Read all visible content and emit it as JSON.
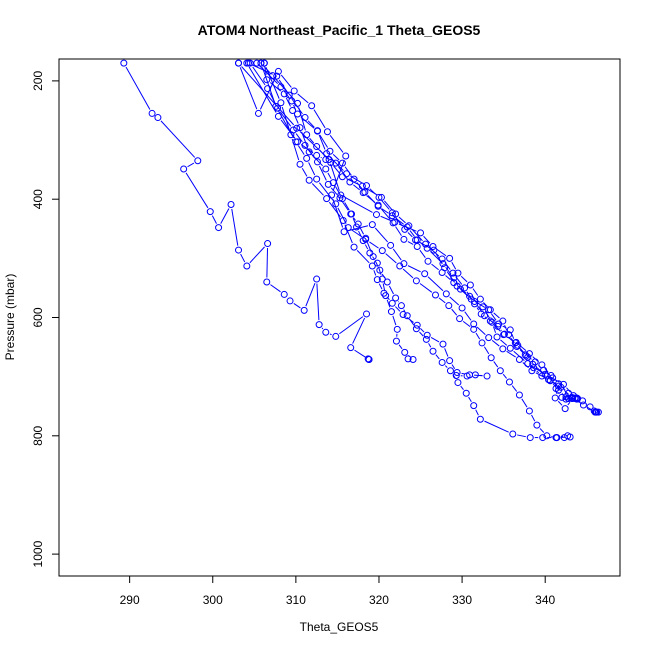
{
  "chart_data": {
    "type": "line",
    "title": "ATOM4 Northeast_Pacific_1 Theta_GEOS5",
    "xlabel": "Theta_GEOS5",
    "ylabel": "Pressure (mbar)",
    "xlim": [
      281.5,
      349
    ],
    "ylim": [
      1037,
      163
    ],
    "y_reversed": true,
    "xticks": [
      290,
      300,
      310,
      320,
      330,
      340
    ],
    "yticks": [
      200,
      400,
      600,
      800,
      1000
    ],
    "grid": false,
    "legend": "none",
    "color": "#0000ff",
    "marker": "open-circle",
    "series": [
      {
        "points": [
          [
            289.3,
            170
          ],
          [
            292.7,
            255
          ],
          [
            293.4,
            262
          ],
          [
            298.2,
            335
          ],
          [
            296.5,
            349
          ],
          [
            299.7,
            421
          ],
          [
            300.7,
            448
          ],
          [
            302.2,
            409
          ],
          [
            303.1,
            486
          ],
          [
            304.1,
            513
          ],
          [
            306.6,
            475
          ],
          [
            306.5,
            540
          ],
          [
            308.6,
            561
          ],
          [
            309.3,
            572
          ],
          [
            311.0,
            588
          ],
          [
            312.5,
            535
          ],
          [
            312.8,
            612
          ],
          [
            313.6,
            625
          ],
          [
            314.8,
            632
          ],
          [
            318.5,
            594
          ],
          [
            316.6,
            651
          ],
          [
            318.8,
            671
          ],
          [
            318.8,
            671
          ],
          [
            318.7,
            670
          ]
        ]
      },
      {
        "points": [
          [
            303.1,
            170
          ],
          [
            305.5,
            255
          ],
          [
            307.9,
            184
          ],
          [
            309.8,
            217
          ],
          [
            311.9,
            242
          ],
          [
            313.8,
            286
          ],
          [
            316.0,
            327
          ],
          [
            314.3,
            393
          ],
          [
            315.8,
            455
          ],
          [
            319.2,
            443
          ],
          [
            321.4,
            478
          ],
          [
            323.0,
            509
          ],
          [
            325.5,
            526
          ],
          [
            328.1,
            560
          ],
          [
            330.0,
            584
          ],
          [
            331.4,
            611
          ],
          [
            333.2,
            634
          ],
          [
            334.9,
            653
          ],
          [
            336.9,
            671
          ],
          [
            338.4,
            690
          ],
          [
            340.4,
            705
          ],
          [
            341.9,
            718
          ],
          [
            343.2,
            735
          ],
          [
            344.6,
            748
          ],
          [
            346.1,
            760
          ],
          [
            346.2,
            760
          ],
          [
            345.9,
            758
          ]
        ]
      },
      {
        "points": [
          [
            303.1,
            170
          ],
          [
            310.1,
            280
          ],
          [
            314.0,
            333
          ],
          [
            315.4,
            393
          ],
          [
            319.7,
            426
          ],
          [
            321.9,
            439
          ],
          [
            325.0,
            457
          ],
          [
            326.5,
            480
          ],
          [
            328.5,
            500
          ],
          [
            329.5,
            525
          ],
          [
            331.0,
            545
          ],
          [
            332.2,
            569
          ],
          [
            333.4,
            587
          ],
          [
            334.9,
            606
          ],
          [
            335.6,
            629
          ],
          [
            336.6,
            649
          ],
          [
            337.7,
            665
          ],
          [
            338.6,
            685
          ],
          [
            339.6,
            699
          ],
          [
            340.6,
            706
          ],
          [
            341.6,
            723
          ],
          [
            342.5,
            734
          ],
          [
            343.2,
            737
          ],
          [
            343.8,
            736
          ],
          [
            343.6,
            736
          ]
        ]
      },
      {
        "points": [
          [
            304.3,
            170
          ],
          [
            307.7,
            192
          ],
          [
            309.2,
            224
          ],
          [
            311.1,
            262
          ],
          [
            312.6,
            284
          ],
          [
            313.7,
            323
          ],
          [
            316.1,
            357
          ],
          [
            318.5,
            377
          ],
          [
            320.0,
            397
          ],
          [
            321.6,
            423
          ],
          [
            323.1,
            451
          ],
          [
            324.4,
            469
          ],
          [
            326.6,
            486
          ],
          [
            327.9,
            516
          ],
          [
            329.4,
            547
          ],
          [
            331.1,
            569
          ],
          [
            333.2,
            587
          ],
          [
            334.4,
            611
          ],
          [
            335.8,
            621
          ],
          [
            336.4,
            643
          ],
          [
            337.9,
            667
          ],
          [
            338.5,
            679
          ],
          [
            340.2,
            699
          ],
          [
            340.6,
            707
          ],
          [
            341.6,
            716
          ],
          [
            341.2,
            736
          ],
          [
            342.4,
            754
          ],
          [
            343.3,
            737
          ],
          [
            342.8,
            737
          ]
        ]
      },
      {
        "points": [
          [
            305.3,
            170
          ],
          [
            308.2,
            210
          ],
          [
            309.5,
            234
          ],
          [
            310.2,
            256
          ],
          [
            312.6,
            285
          ],
          [
            314.1,
            319
          ],
          [
            315.6,
            339
          ],
          [
            317.0,
            366
          ],
          [
            318.3,
            388
          ],
          [
            319.9,
            412
          ],
          [
            321.6,
            428
          ],
          [
            323.4,
            447
          ],
          [
            324.6,
            469
          ],
          [
            325.8,
            483
          ],
          [
            327.7,
            509
          ],
          [
            329.0,
            533
          ],
          [
            329.8,
            552
          ],
          [
            331.5,
            573
          ],
          [
            332.7,
            597
          ],
          [
            334.3,
            615
          ],
          [
            335.1,
            628
          ],
          [
            336.7,
            647
          ],
          [
            337.6,
            663
          ],
          [
            338.8,
            675
          ],
          [
            339.8,
            689
          ],
          [
            340.9,
            702
          ],
          [
            341.3,
            720
          ],
          [
            342.0,
            735
          ],
          [
            343.8,
            738
          ],
          [
            342.5,
            738
          ]
        ]
      },
      {
        "points": [
          [
            306.2,
            170
          ],
          [
            308.2,
            237
          ],
          [
            309.4,
            291
          ],
          [
            310.5,
            341
          ],
          [
            311.6,
            368
          ],
          [
            313.7,
            399
          ],
          [
            315.7,
            436
          ],
          [
            317.0,
            481
          ],
          [
            319.2,
            513
          ],
          [
            319.8,
            536
          ],
          [
            320.6,
            559
          ],
          [
            321.6,
            576
          ],
          [
            322.9,
            595
          ],
          [
            324.6,
            613
          ],
          [
            325.8,
            630
          ],
          [
            327.7,
            645
          ],
          [
            328.5,
            673
          ],
          [
            329.4,
            693
          ],
          [
            330.9,
            697
          ],
          [
            333.0,
            699
          ],
          [
            331.6,
            697
          ],
          [
            330.6,
            699
          ],
          [
            329.3,
            698
          ]
        ]
      },
      {
        "points": [
          [
            306.2,
            170
          ],
          [
            306.5,
            198
          ],
          [
            308.6,
            222
          ],
          [
            309.6,
            250
          ],
          [
            310.5,
            279
          ],
          [
            311.6,
            320
          ],
          [
            313.6,
            349
          ],
          [
            314.5,
            372
          ],
          [
            315.6,
            399
          ],
          [
            316.7,
            425
          ],
          [
            317.3,
            447
          ],
          [
            318.1,
            470
          ],
          [
            318.9,
            491
          ],
          [
            319.8,
            508
          ],
          [
            320.4,
            535
          ],
          [
            320.8,
            563
          ],
          [
            321.5,
            590
          ],
          [
            322.2,
            620
          ],
          [
            322.1,
            640
          ],
          [
            323.1,
            659
          ],
          [
            324.1,
            671
          ],
          [
            323.5,
            670
          ]
        ]
      },
      {
        "points": [
          [
            305.8,
            170
          ],
          [
            307.6,
            243
          ],
          [
            310.0,
            303
          ],
          [
            311.3,
            331
          ],
          [
            312.5,
            366
          ],
          [
            314.8,
            408
          ],
          [
            316.3,
            448
          ],
          [
            318.4,
            468
          ],
          [
            320.4,
            487
          ],
          [
            322.5,
            513
          ],
          [
            324.5,
            538
          ],
          [
            326.8,
            562
          ],
          [
            328.4,
            580
          ],
          [
            329.7,
            602
          ],
          [
            331.4,
            620
          ],
          [
            332.4,
            643
          ],
          [
            333.5,
            668
          ],
          [
            334.6,
            690
          ],
          [
            335.7,
            709
          ],
          [
            336.9,
            731
          ],
          [
            338.1,
            758
          ],
          [
            339.0,
            782
          ],
          [
            340.2,
            800
          ],
          [
            341.4,
            803
          ],
          [
            342.7,
            800
          ],
          [
            343.0,
            802
          ],
          [
            341.4,
            803
          ]
        ]
      },
      {
        "points": [
          [
            304.5,
            170
          ],
          [
            306.6,
            213
          ],
          [
            307.8,
            246
          ],
          [
            309.7,
            283
          ],
          [
            311.1,
            309
          ],
          [
            312.6,
            337
          ],
          [
            313.9,
            375
          ],
          [
            315.3,
            398
          ],
          [
            316.6,
            425
          ],
          [
            317.5,
            442
          ],
          [
            318.4,
            466
          ],
          [
            319.3,
            497
          ],
          [
            320.1,
            520
          ],
          [
            321.0,
            540
          ],
          [
            322.0,
            567
          ],
          [
            322.7,
            580
          ],
          [
            323.4,
            597
          ],
          [
            324.5,
            619
          ],
          [
            325.7,
            637
          ],
          [
            326.5,
            657
          ],
          [
            327.6,
            676
          ],
          [
            328.6,
            690
          ],
          [
            329.5,
            710
          ],
          [
            330.5,
            728
          ],
          [
            331.4,
            749
          ],
          [
            332.2,
            772
          ],
          [
            336.1,
            797
          ],
          [
            338.2,
            803
          ],
          [
            339.7,
            803
          ],
          [
            341.3,
            803
          ],
          [
            342.3,
            803
          ]
        ]
      },
      {
        "points": [
          [
            304.1,
            170
          ],
          [
            307.9,
            260
          ],
          [
            310.2,
            303
          ],
          [
            312.5,
            326
          ],
          [
            313.6,
            333
          ],
          [
            314.8,
            339
          ],
          [
            316.5,
            371
          ],
          [
            318.1,
            389
          ],
          [
            319.9,
            410
          ],
          [
            321.7,
            440
          ],
          [
            323.0,
            468
          ],
          [
            324.6,
            480
          ],
          [
            325.9,
            505
          ],
          [
            327.6,
            524
          ],
          [
            329.0,
            541
          ],
          [
            330.9,
            564
          ],
          [
            332.5,
            582
          ],
          [
            333.6,
            608
          ],
          [
            334.2,
            633
          ],
          [
            335.8,
            652
          ],
          [
            337.9,
            678
          ],
          [
            340.0,
            696
          ],
          [
            342.2,
            713
          ],
          [
            343.4,
            732
          ],
          [
            344.5,
            741
          ],
          [
            345.4,
            751
          ],
          [
            346.0,
            760
          ],
          [
            346.4,
            760
          ]
        ]
      },
      {
        "points": [
          [
            305.8,
            170
          ],
          [
            307.2,
            191
          ],
          [
            310.2,
            238
          ],
          [
            311.3,
            291
          ],
          [
            312.5,
            311
          ],
          [
            314.2,
            338
          ],
          [
            315.6,
            362
          ],
          [
            318.0,
            378
          ],
          [
            320.3,
            397
          ],
          [
            322.0,
            425
          ],
          [
            323.6,
            445
          ],
          [
            325.6,
            476
          ],
          [
            327.6,
            501
          ],
          [
            328.9,
            525
          ],
          [
            330.3,
            550
          ],
          [
            331.5,
            577
          ],
          [
            332.3,
            594
          ],
          [
            333.4,
            606
          ],
          [
            335.0,
            629
          ],
          [
            336.5,
            642
          ],
          [
            338.1,
            661
          ],
          [
            339.6,
            680
          ],
          [
            340.7,
            698
          ],
          [
            341.6,
            712
          ],
          [
            342.8,
            728
          ],
          [
            343.9,
            737
          ],
          [
            343.6,
            737
          ],
          [
            342.8,
            737
          ]
        ]
      }
    ]
  }
}
